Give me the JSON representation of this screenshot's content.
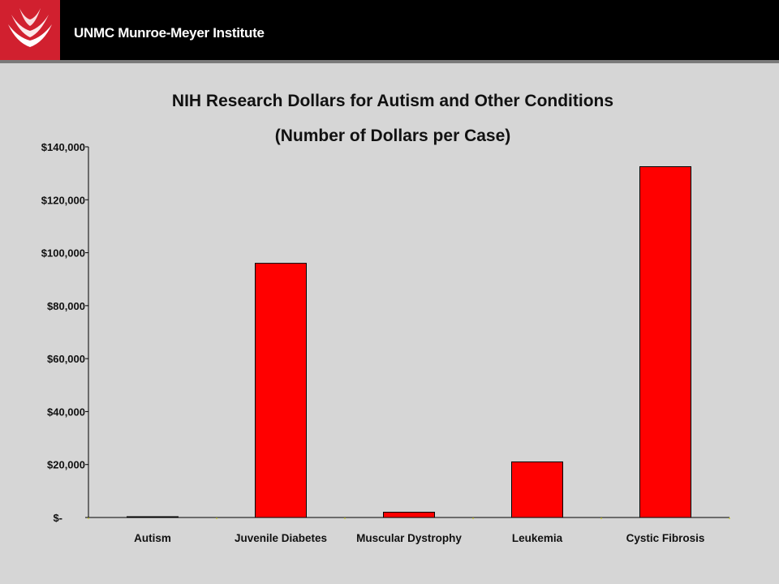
{
  "header": {
    "org_name": "UNMC Munroe-Meyer Institute",
    "logo_color": "#d1202f"
  },
  "chart_data": {
    "type": "bar",
    "title": "NIH Research Dollars for Autism and Other Conditions",
    "subtitle": "(Number of Dollars per Case)",
    "xlabel": "",
    "ylabel": "",
    "categories": [
      "Autism",
      "Juvenile Diabetes",
      "Muscular Dystrophy",
      "Leukemia",
      "Cystic Fibrosis"
    ],
    "values": [
      300,
      96000,
      2000,
      21000,
      132500
    ],
    "ylim": [
      0,
      140000
    ],
    "yticks": [
      0,
      20000,
      40000,
      60000,
      80000,
      100000,
      120000,
      140000
    ],
    "ytick_labels": [
      "$-",
      "$20,000",
      "$40,000",
      "$60,000",
      "$80,000",
      "$100,000",
      "$120,000",
      "$140,000"
    ],
    "bar_color": "#ff0000",
    "grid": false,
    "legend": "none"
  }
}
